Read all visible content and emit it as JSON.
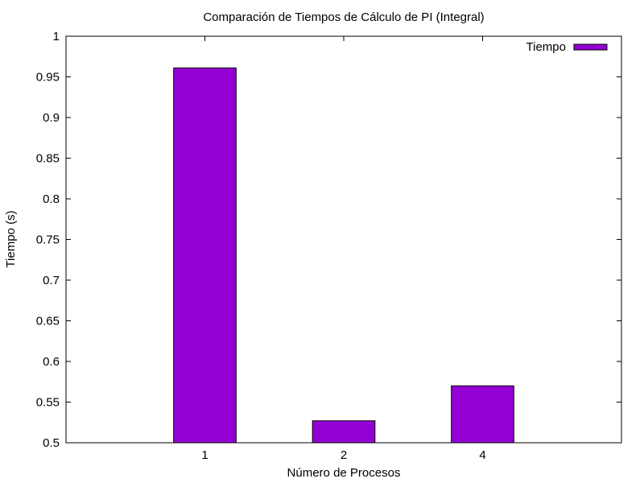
{
  "chart_data": {
    "type": "bar",
    "title": "Comparación de Tiempos de Cálculo de PI (Integral)",
    "xlabel": "Número de Procesos",
    "ylabel": "Tiempo (s)",
    "categories": [
      "1",
      "2",
      "4"
    ],
    "series": [
      {
        "name": "Tiempo",
        "values": [
          0.961,
          0.527,
          0.57
        ],
        "color": "#9400d3"
      }
    ],
    "ylim": [
      0.5,
      1
    ],
    "yticks": [
      0.5,
      0.55,
      0.6,
      0.65,
      0.7,
      0.75,
      0.8,
      0.85,
      0.9,
      0.95,
      1
    ],
    "ytick_labels": [
      "0.5",
      "0.55",
      "0.6",
      "0.65",
      "0.7",
      "0.75",
      "0.8",
      "0.85",
      "0.9",
      "0.95",
      "1"
    ],
    "grid": false,
    "legend_position": "top-right"
  }
}
